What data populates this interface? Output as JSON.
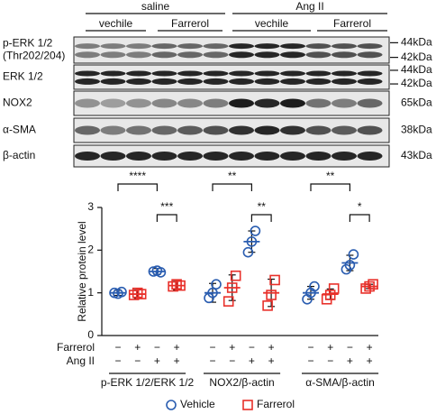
{
  "blot": {
    "groups": [
      "saline",
      "Ang II"
    ],
    "subgroups": [
      "vechile",
      "Farrerol",
      "vechile",
      "Farrerol"
    ],
    "rows": [
      {
        "label": [
          "p-ERK 1/2",
          "(Thr202/204)"
        ],
        "sizes": [
          "44kDa",
          "42kDa"
        ]
      },
      {
        "label": [
          "ERK 1/2"
        ],
        "sizes": [
          "44kDa",
          "42kDa"
        ]
      },
      {
        "label": [
          "NOX2"
        ],
        "sizes": [
          "65kDa"
        ]
      },
      {
        "label": [
          "α-SMA"
        ],
        "sizes": [
          "38kDa"
        ]
      },
      {
        "label": [
          "β-actin"
        ],
        "sizes": [
          "43kDa"
        ]
      }
    ]
  },
  "chart_data": {
    "type": "scatter",
    "ylabel": "Relative protein level",
    "ylim": [
      0,
      3
    ],
    "yticks": [
      0,
      1,
      2,
      3
    ],
    "series": [
      {
        "name": "Vehicle",
        "color": "#2a5db0"
      },
      {
        "name": "Farrerol",
        "color": "#e8302a"
      }
    ],
    "condition_rows": [
      {
        "name": "Farrerol",
        "signs": [
          "−",
          "+",
          "−",
          "+"
        ]
      },
      {
        "name": "Ang II",
        "signs": [
          "−",
          "−",
          "+",
          "+"
        ]
      }
    ],
    "panels": [
      {
        "name": "p-ERK 1/2/ERK 1/2",
        "mean": [
          1.0,
          0.97,
          1.5,
          1.17
        ],
        "sd": [
          0.06,
          0.1,
          0.07,
          0.1
        ],
        "points": [
          [
            1.0,
            0.98,
            1.02
          ],
          [
            0.95,
            1.0,
            0.97
          ],
          [
            1.5,
            1.52,
            1.48
          ],
          [
            1.15,
            1.2,
            1.17
          ]
        ],
        "significance": [
          "****",
          "***"
        ]
      },
      {
        "name": "NOX2/β-actin",
        "mean": [
          1.0,
          1.12,
          2.2,
          1.0
        ],
        "sd": [
          0.22,
          0.3,
          0.25,
          0.32
        ],
        "points": [
          [
            0.88,
            1.0,
            1.2
          ],
          [
            0.8,
            1.12,
            1.4
          ],
          [
            1.95,
            2.2,
            2.45
          ],
          [
            0.7,
            0.95,
            1.3
          ]
        ],
        "significance": [
          "**",
          "**"
        ]
      },
      {
        "name": "α-SMA/β-actin",
        "mean": [
          1.0,
          0.97,
          1.7,
          1.15
        ],
        "sd": [
          0.15,
          0.12,
          0.18,
          0.05
        ],
        "points": [
          [
            0.85,
            1.0,
            1.15
          ],
          [
            0.85,
            0.95,
            1.1
          ],
          [
            1.55,
            1.65,
            1.9
          ],
          [
            1.1,
            1.15,
            1.2
          ]
        ],
        "significance": [
          "**",
          "*"
        ]
      }
    ]
  }
}
